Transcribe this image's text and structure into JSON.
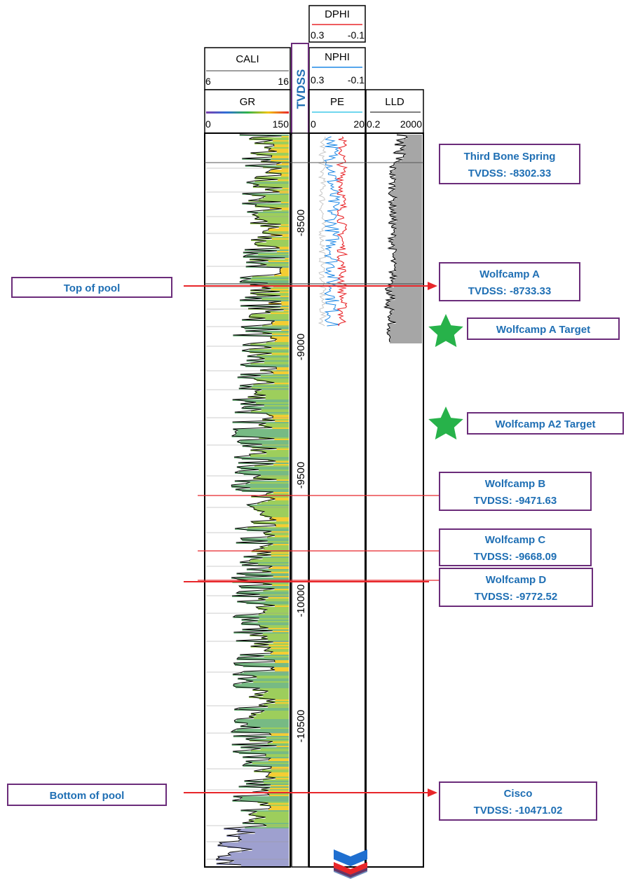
{
  "tracks": {
    "cali": {
      "label": "CALI",
      "min": "6",
      "max": "16",
      "color": "#7f7f7f"
    },
    "gr": {
      "label": "GR",
      "min": "0",
      "max": "150"
    },
    "tvdss": {
      "label": "TVDSS"
    },
    "dphi": {
      "label": "DPHI",
      "min": "0.3",
      "max": "-0.1",
      "color": "#e8262a"
    },
    "nphi": {
      "label": "NPHI",
      "min": "0.3",
      "max": "-0.1",
      "color": "#1e88e5"
    },
    "pe": {
      "label": "PE",
      "min": "0",
      "max": "20",
      "color": "#40c8e8"
    },
    "lld": {
      "label": "LLD",
      "min": "0.2",
      "max": "2000"
    }
  },
  "depth_ticks": [
    {
      "value": -8500,
      "label": "-8500"
    },
    {
      "value": -9000,
      "label": "-9000"
    },
    {
      "value": -9500,
      "label": "-9500"
    },
    {
      "value": -10000,
      "label": "-10000"
    },
    {
      "value": -10500,
      "label": "-10500"
    }
  ],
  "formation_tops": [
    {
      "name": "Third Bone Spring",
      "depth_label": "TVDSS: -8302.33",
      "tvdss": -8302.33
    },
    {
      "name": "Wolfcamp A",
      "depth_label": "TVDSS: -8733.33",
      "tvdss": -8733.33
    },
    {
      "name": "Wolfcamp B",
      "depth_label": "TVDSS: -9471.63",
      "tvdss": -9471.63
    },
    {
      "name": "Wolfcamp C",
      "depth_label": "TVDSS: -9668.09",
      "tvdss": -9668.09
    },
    {
      "name": "Wolfcamp D",
      "depth_label": "TVDSS: -9772.52",
      "tvdss": -9772.52
    },
    {
      "name": "Cisco",
      "depth_label": "TVDSS: -10471.02",
      "tvdss": -10471.02
    }
  ],
  "targets": [
    {
      "label": "Wolfcamp A Target"
    },
    {
      "label": "Wolfcamp A2 Target"
    }
  ],
  "pool": {
    "top_label": "Top of pool",
    "bottom_label": "Bottom of pool"
  },
  "colors": {
    "label_text": "#1f6fb4",
    "box_border": "#6b2c7a",
    "arrow": "#e8262a",
    "star": "#27b24a",
    "gr_fill_high": "#f2c40f",
    "gr_fill_mid": "#8cc63f",
    "gr_fill_low": "#8d8fc7",
    "lld_fill": "#a6a6a6"
  }
}
